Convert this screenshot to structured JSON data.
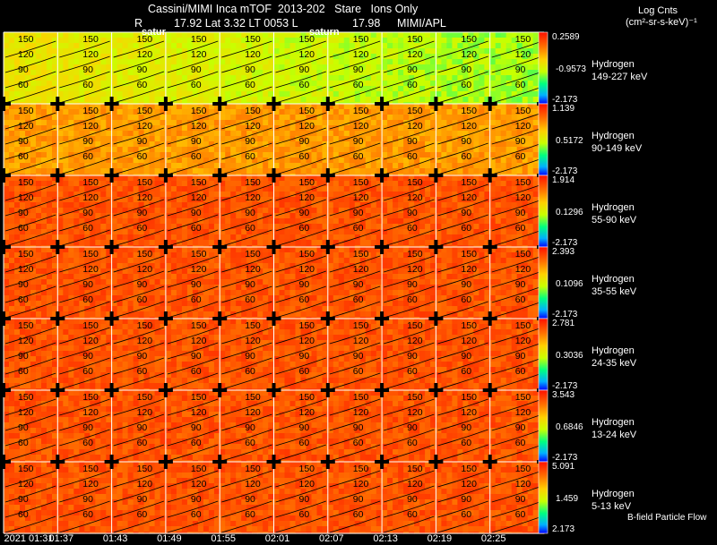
{
  "header": {
    "line1": "Cassini/MIMI Inca mTOF  2013-202   Stare   Ions Only",
    "line2_r_label": "R",
    "line2_values": "17.92 Lat 3.32 LT 0053 L",
    "line2_l_value": "17.98",
    "line2_credit": "MIMI/APL",
    "overlay_labels": [
      "satur",
      "saturn"
    ],
    "units_title": "Log Cnts",
    "units": "(cm²-sr-s-keV)⁻¹"
  },
  "chart_data": {
    "type": "heatmap",
    "title": "Cassini/MIMI Inca mTOF 2013-202 Stare Ions Only",
    "time_labels": [
      "2021 01:31",
      "01:37",
      "01:43",
      "01:49",
      "01:55",
      "02:01",
      "02:07",
      "02:13",
      "02:19",
      "02:25"
    ],
    "contour_labels": [
      "150",
      "120",
      "90",
      "60"
    ],
    "channels": [
      {
        "species": "Hydrogen",
        "energy": "149-227 keV",
        "cbar": [
          "0.2589",
          "-0.9573",
          "-2.173"
        ]
      },
      {
        "species": "Hydrogen",
        "energy": "90-149 keV",
        "cbar": [
          "1.139",
          "0.5172",
          "-2.173"
        ]
      },
      {
        "species": "Hydrogen",
        "energy": "55-90 keV",
        "cbar": [
          "1.914",
          "0.1296",
          "-2.173"
        ]
      },
      {
        "species": "Hydrogen",
        "energy": "35-55 keV",
        "cbar": [
          "2.393",
          "0.1096",
          "-2.173"
        ]
      },
      {
        "species": "Hydrogen",
        "energy": "24-35 keV",
        "cbar": [
          "2.781",
          "0.3036",
          "-2.173"
        ]
      },
      {
        "species": "Hydrogen",
        "energy": "13-24 keV",
        "cbar": [
          "3.543",
          "0.6846",
          "-2.173"
        ]
      },
      {
        "species": "Hydrogen",
        "energy": "5-13 keV",
        "cbar": [
          "5.091",
          "1.459",
          "2.173"
        ]
      }
    ],
    "row_mean_level": [
      0.55,
      0.72,
      0.86,
      0.86,
      0.86,
      0.86,
      0.86
    ],
    "footer_note": "B-field Particle Flow"
  }
}
